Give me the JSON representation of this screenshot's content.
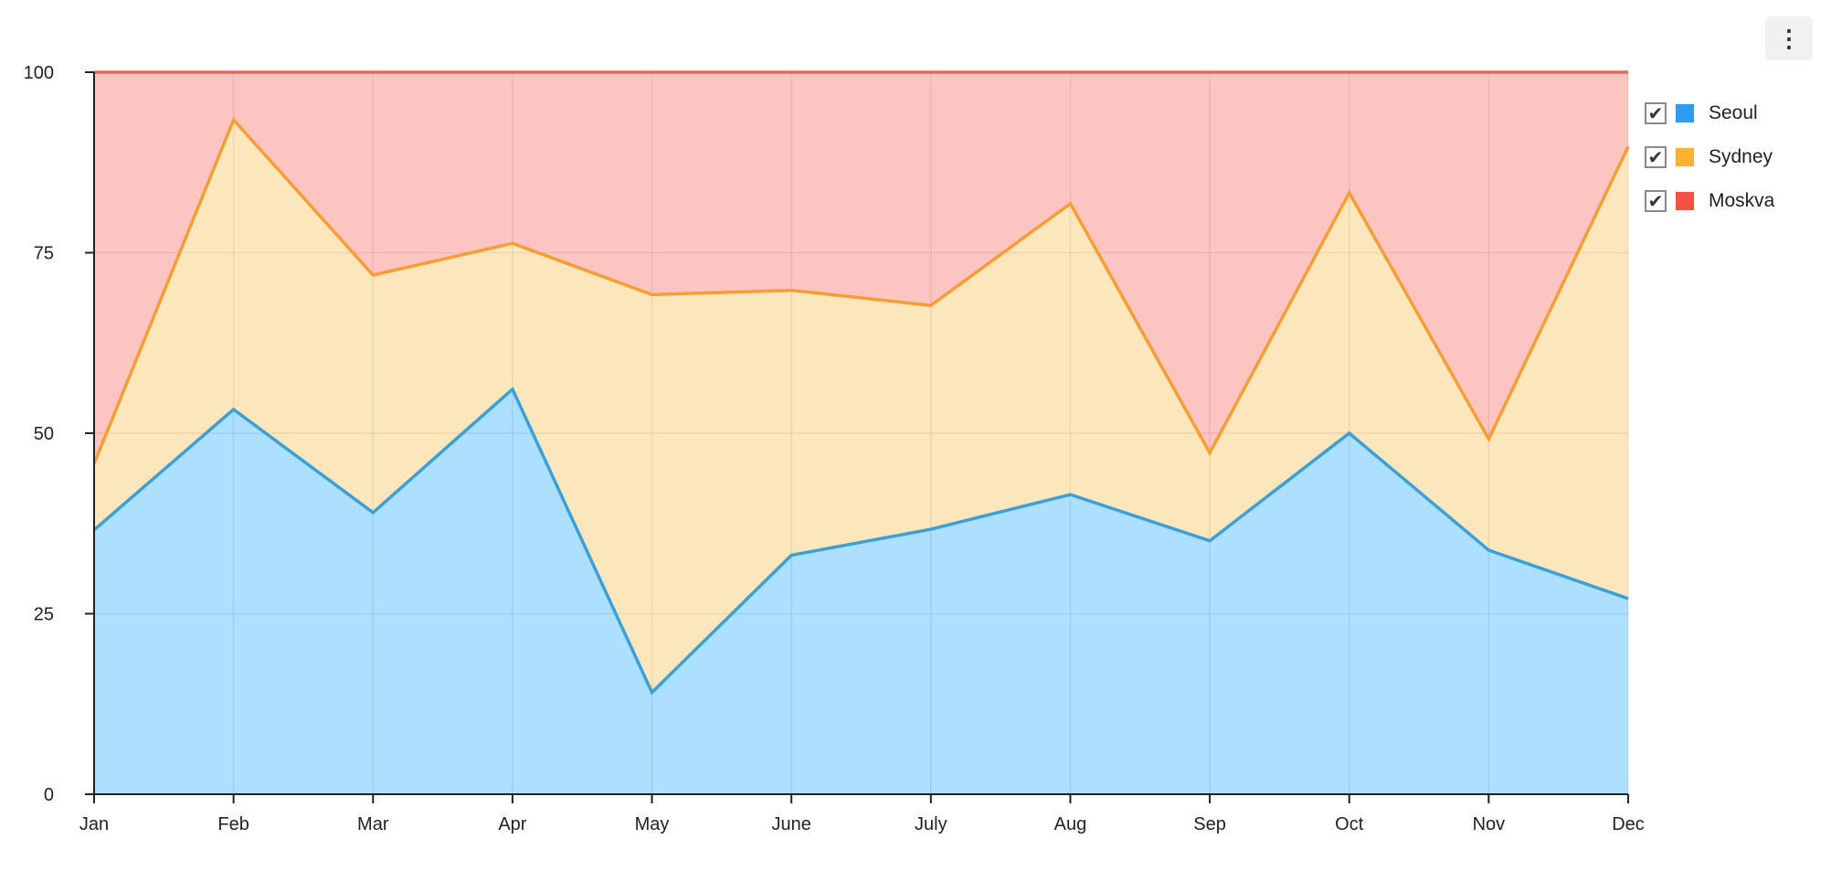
{
  "menu": {
    "icon": "vertical-ellipsis-icon",
    "glyph": "⋮"
  },
  "chart_data": {
    "type": "area",
    "stacked": true,
    "normalized_percent": true,
    "categories": [
      "Jan",
      "Feb",
      "Mar",
      "Apr",
      "May",
      "June",
      "July",
      "Aug",
      "Sep",
      "Oct",
      "Nov",
      "Dec"
    ],
    "series": [
      {
        "name": "Seoul",
        "color": "#2f9cf3",
        "line_color": "#3b9fdc",
        "fill_color": "#addfff",
        "values": [
          36.6,
          53.3,
          39.0,
          56.1,
          14.1,
          33.1,
          36.7,
          41.5,
          35.1,
          50.0,
          33.8,
          27.1
        ]
      },
      {
        "name": "Sydney",
        "color": "#ffb230",
        "line_color": "#f89c34",
        "fill_color": "#fce7bd",
        "values": [
          9.2,
          40.1,
          32.9,
          20.2,
          55.1,
          36.7,
          31.0,
          40.3,
          12.2,
          33.3,
          15.4,
          62.6
        ]
      },
      {
        "name": "Moskva",
        "color": "#f55142",
        "line_color": "#e8685e",
        "fill_color": "#fcc5c1",
        "values": [
          54.2,
          6.6,
          28.1,
          23.7,
          30.8,
          30.2,
          32.3,
          18.2,
          52.7,
          16.7,
          50.8,
          10.3
        ]
      }
    ],
    "y_ticks": [
      "0",
      "25",
      "50",
      "75",
      "100"
    ],
    "ylim": [
      0,
      100
    ],
    "grid": true,
    "legend_position": "right",
    "legend_checkmark": "✔"
  }
}
